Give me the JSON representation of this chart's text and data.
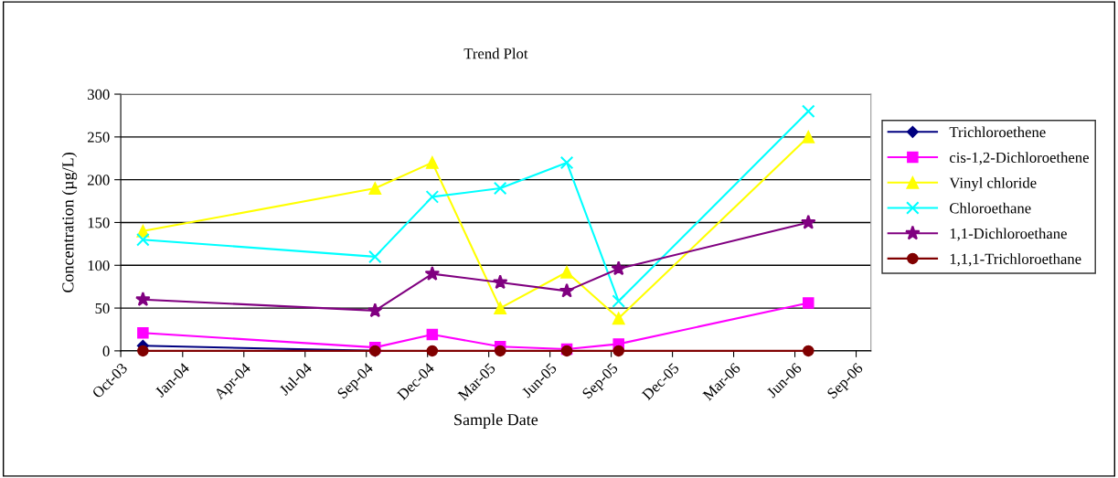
{
  "chart_data": {
    "type": "line",
    "title": "Trend Plot",
    "xlabel": "Sample Date",
    "ylabel": "Concentration (µg/L)",
    "x": [
      "2003-11-03",
      "2004-10-13",
      "2005-01-06",
      "2005-04-17",
      "2005-07-25",
      "2005-10-10",
      "2006-07-19"
    ],
    "series": [
      {
        "name": "Trichloroethene",
        "color": "#000080",
        "marker": "diamond",
        "values": [
          6,
          0,
          null,
          null,
          null,
          null,
          null
        ]
      },
      {
        "name": "cis-1,2-Dichloroethene",
        "color": "#ff00ff",
        "marker": "square",
        "values": [
          21,
          4,
          19,
          5,
          2,
          8,
          56
        ]
      },
      {
        "name": "Vinyl chloride",
        "color": "#ffff00",
        "marker": "triangle",
        "values": [
          140,
          190,
          220,
          50,
          92,
          38,
          250
        ]
      },
      {
        "name": "Chloroethane",
        "color": "#00ffff",
        "marker": "cross",
        "values": [
          130,
          110,
          180,
          190,
          220,
          58,
          280
        ]
      },
      {
        "name": "1,1-Dichloroethane",
        "color": "#800080",
        "marker": "star",
        "values": [
          60,
          47,
          90,
          80,
          70,
          96,
          150
        ]
      },
      {
        "name": "1,1,1-Trichloroethane",
        "color": "#800000",
        "marker": "circle",
        "values": [
          0,
          0,
          0,
          0,
          0,
          0,
          0
        ]
      }
    ],
    "xlim": [
      "2003-10-01",
      "2006-10-20"
    ],
    "xticks": [
      {
        "value": "2003-10-01",
        "label": "Oct-03"
      },
      {
        "value": "2004-01-01",
        "label": "Jan-04"
      },
      {
        "value": "2004-04-01",
        "label": "Apr-04"
      },
      {
        "value": "2004-07-01",
        "label": "Jul-04"
      },
      {
        "value": "2004-09-30",
        "label": "Sep-04"
      },
      {
        "value": "2004-12-30",
        "label": "Dec-04"
      },
      {
        "value": "2005-03-31",
        "label": "Mar-05"
      },
      {
        "value": "2005-06-30",
        "label": "Jun-05"
      },
      {
        "value": "2005-09-29",
        "label": "Sep-05"
      },
      {
        "value": "2005-12-29",
        "label": "Dec-05"
      },
      {
        "value": "2006-03-30",
        "label": "Mar-06"
      },
      {
        "value": "2006-06-29",
        "label": "Jun-06"
      },
      {
        "value": "2006-09-28",
        "label": "Sep-06"
      }
    ],
    "ylim": [
      0,
      300
    ],
    "yticks": [
      0,
      50,
      100,
      150,
      200,
      250,
      300
    ],
    "grid": "y",
    "legend": "right",
    "line_style": "solid"
  }
}
